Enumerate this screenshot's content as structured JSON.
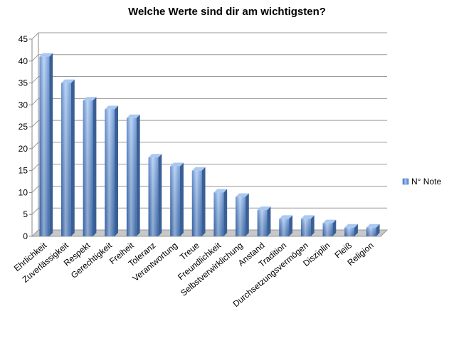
{
  "chart_data": {
    "type": "bar",
    "title": "Welche Werte sind dir am wichtigsten?",
    "categories": [
      "Ehrlichkeit",
      "Zuverlässigkeit",
      "Respekt",
      "Gerechtigkeit",
      "Freiheit",
      "Toleranz",
      "Verantwortung",
      "Treue",
      "Freundlichkeit",
      "Selbstverwirklichung",
      "Anstand",
      "Tradition",
      "Durchsetzungsvermögen",
      "Disziplin",
      "Fleiß",
      "Religion"
    ],
    "series": [
      {
        "name": "N° Note",
        "values": [
          41,
          35,
          31,
          29,
          27,
          18,
          16,
          15,
          10,
          9,
          6,
          4,
          4,
          3,
          2,
          2
        ]
      }
    ],
    "ylim": [
      0,
      45
    ],
    "yticks": [
      0,
      5,
      10,
      15,
      20,
      25,
      30,
      35,
      40,
      45
    ],
    "grid": true,
    "legend": "right",
    "colors": {
      "bar_light": "#a9c8f2",
      "bar_mid": "#5b8fd6",
      "bar_dark": "#2f63b0",
      "bar_side": "#3a5f94",
      "grid": "#9a9a9a",
      "floor": "#c8c8c8"
    }
  }
}
